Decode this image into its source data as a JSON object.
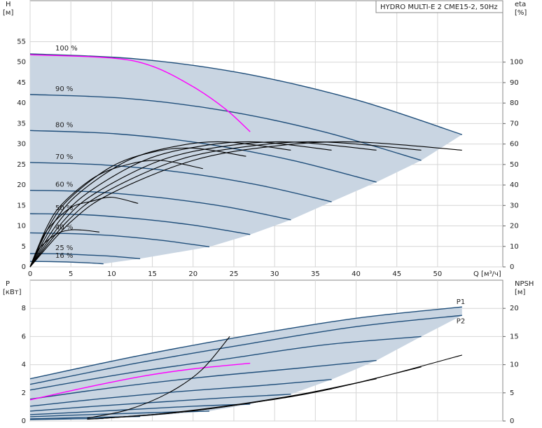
{
  "chart_data": [
    {
      "type": "line",
      "title": "HYDRO MULTI-E 2 CME15-2, 50Hz",
      "ylabel": "H",
      "yunit": "[м]",
      "y2label": "eta",
      "y2unit": "[%]",
      "xlabel": "Q [м³/ч]",
      "xlim": [
        0,
        58
      ],
      "xticks": [
        0,
        5,
        10,
        15,
        20,
        25,
        30,
        35,
        40,
        45,
        50
      ],
      "ylim": [
        0,
        65
      ],
      "yticks": [
        0,
        5,
        10,
        15,
        20,
        25,
        30,
        35,
        40,
        45,
        50,
        55
      ],
      "y2lim": [
        0,
        130
      ],
      "y2ticks": [
        0,
        10,
        20,
        30,
        40,
        50,
        60,
        70,
        80,
        90,
        100
      ],
      "grid": true,
      "area_color": "#c9d5e2",
      "series": [
        {
          "name": "100 %",
          "label_at": "start",
          "color": "#1f4e7a",
          "x": [
            0,
            13,
            26,
            40,
            53
          ],
          "values": [
            52,
            50.8,
            47.3,
            40.8,
            32.3
          ]
        },
        {
          "name": "90 %",
          "label_at": "start",
          "color": "#1f4e7a",
          "x": [
            0,
            12,
            24,
            36,
            48
          ],
          "values": [
            42.1,
            41.1,
            38.1,
            33.0,
            26.0
          ]
        },
        {
          "name": "80 %",
          "label_at": "start",
          "color": "#1f4e7a",
          "x": [
            0,
            10.5,
            21,
            32,
            42.5
          ],
          "values": [
            33.3,
            32.5,
            30.2,
            26.1,
            20.7
          ]
        },
        {
          "name": "70 %",
          "label_at": "start",
          "color": "#1f4e7a",
          "x": [
            0,
            9,
            18.5,
            28,
            37
          ],
          "values": [
            25.5,
            24.9,
            23.1,
            20.0,
            15.9
          ]
        },
        {
          "name": "60 %",
          "label_at": "start",
          "color": "#1f4e7a",
          "x": [
            0,
            8,
            16,
            24,
            32
          ],
          "values": [
            18.7,
            18.3,
            16.9,
            14.7,
            11.5
          ]
        },
        {
          "name": "50 %",
          "label_at": "start",
          "color": "#1f4e7a",
          "x": [
            0,
            7,
            13.5,
            20,
            27
          ],
          "values": [
            13,
            12.7,
            11.7,
            10.2,
            7.9
          ]
        },
        {
          "name": "40 %",
          "label_at": "start",
          "color": "#1f4e7a",
          "x": [
            0,
            5.5,
            11,
            16.5,
            22
          ],
          "values": [
            8.3,
            8.1,
            7.5,
            6.4,
            4.9
          ]
        },
        {
          "name": "25 %",
          "label_at": "start",
          "color": "#1f4e7a",
          "x": [
            0,
            3.5,
            7,
            10,
            13.5
          ],
          "values": [
            3.25,
            3.2,
            2.9,
            2.6,
            2.0
          ]
        },
        {
          "name": "16 %",
          "label_at": "start",
          "color": "#1f4e7a",
          "x": [
            0,
            2.5,
            4.5,
            7,
            9
          ],
          "values": [
            1.33,
            1.3,
            1.2,
            1.0,
            0.76
          ]
        },
        {
          "color": "#ff00ff",
          "x": [
            0,
            10,
            15,
            20,
            24,
            27
          ],
          "values": [
            51.8,
            51,
            49,
            44,
            38.5,
            33
          ]
        },
        {
          "color": "#000000",
          "axis": "y2",
          "x": [
            0,
            5,
            10,
            20,
            30,
            40,
            53
          ],
          "values": [
            0,
            22,
            36,
            52,
            59,
            61,
            57
          ]
        },
        {
          "color": "#000000",
          "axis": "y2",
          "x": [
            0,
            4.5,
            9,
            18,
            27,
            36,
            48
          ],
          "values": [
            0,
            22,
            36,
            52,
            59,
            61,
            57
          ]
        },
        {
          "color": "#000000",
          "axis": "y2",
          "x": [
            0,
            4,
            8,
            16,
            24,
            32,
            42.5
          ],
          "values": [
            0,
            22,
            36,
            52,
            59,
            61,
            57
          ]
        },
        {
          "color": "#000000",
          "axis": "y2",
          "x": [
            0,
            3.5,
            7,
            14,
            21,
            28,
            37
          ],
          "values": [
            0,
            22,
            36,
            52,
            59,
            61,
            57
          ]
        },
        {
          "color": "#000000",
          "axis": "y2",
          "x": [
            0,
            3,
            6,
            12,
            18,
            24,
            32
          ],
          "values": [
            0,
            22,
            36,
            52,
            59,
            61,
            57
          ]
        },
        {
          "color": "#000000",
          "axis": "y2",
          "x": [
            0,
            2.5,
            5,
            10,
            15,
            20,
            26.5
          ],
          "values": [
            0,
            21,
            34,
            49,
            56,
            58,
            54
          ]
        },
        {
          "color": "#000000",
          "axis": "y2",
          "x": [
            0,
            2,
            4,
            8,
            12,
            16,
            21.2
          ],
          "values": [
            0,
            19,
            31,
            44,
            50,
            52,
            48
          ]
        },
        {
          "color": "#000000",
          "axis": "y2",
          "x": [
            0,
            1.25,
            2.5,
            5,
            7.5,
            10,
            13.25
          ],
          "values": [
            0,
            12,
            20,
            29,
            32,
            34,
            31
          ]
        },
        {
          "color": "#000000",
          "axis": "y2",
          "x": [
            0,
            0.8,
            1.6,
            3.2,
            4.8,
            6.4,
            8.5
          ],
          "values": [
            0,
            7,
            11,
            16,
            18,
            18,
            17
          ]
        }
      ]
    },
    {
      "type": "line",
      "ylabel": "P",
      "yunit": "[кВт]",
      "y2label": "NPSH",
      "y2unit": "[м]",
      "xlim": [
        0,
        58
      ],
      "ylim": [
        0,
        10
      ],
      "yticks": [
        0,
        2,
        4,
        6,
        8
      ],
      "y2lim": [
        0,
        25
      ],
      "y2ticks": [
        0,
        5,
        10,
        15,
        20
      ],
      "grid": true,
      "area_color": "#c9d5e2",
      "series": [
        {
          "name": "P1",
          "label_at": "end-above",
          "color": "#1f4e7a",
          "x": [
            0,
            13,
            26,
            40,
            53
          ],
          "values": [
            3.0,
            4.6,
            6.0,
            7.3,
            8.1
          ]
        },
        {
          "name": "P2",
          "label_at": "end-below",
          "color": "#1f4e7a",
          "x": [
            0,
            13,
            26,
            40,
            53
          ],
          "values": [
            2.6,
            4.1,
            5.4,
            6.7,
            7.5
          ]
        },
        {
          "color": "#1f4e7a",
          "x": [
            0,
            12,
            24,
            36,
            48
          ],
          "values": [
            2.2,
            3.4,
            4.4,
            5.4,
            6.0
          ]
        },
        {
          "color": "#1f4e7a",
          "x": [
            0,
            10.5,
            21,
            32,
            42.5
          ],
          "values": [
            1.55,
            2.4,
            3.1,
            3.7,
            4.3
          ]
        },
        {
          "color": "#1f4e7a",
          "x": [
            0,
            9,
            18.5,
            28,
            37
          ],
          "values": [
            1.05,
            1.6,
            2.1,
            2.5,
            2.95
          ]
        },
        {
          "color": "#1f4e7a",
          "x": [
            0,
            8,
            16,
            24,
            32
          ],
          "values": [
            0.7,
            1.05,
            1.35,
            1.65,
            1.9
          ]
        },
        {
          "color": "#1f4e7a",
          "x": [
            0,
            7,
            13.5,
            20,
            27
          ],
          "values": [
            0.45,
            0.65,
            0.85,
            1.05,
            1.2
          ]
        },
        {
          "color": "#1f4e7a",
          "x": [
            0,
            5.5,
            11,
            16.5,
            22
          ],
          "values": [
            0.3,
            0.42,
            0.52,
            0.62,
            0.7
          ]
        },
        {
          "color": "#1f4e7a",
          "x": [
            0,
            3.5,
            7,
            10,
            13.5
          ],
          "values": [
            0.15,
            0.2,
            0.25,
            0.28,
            0.32
          ]
        },
        {
          "color": "#1f4e7a",
          "x": [
            0,
            2.5,
            4.5,
            7,
            9
          ],
          "values": [
            0.1,
            0.12,
            0.14,
            0.16,
            0.18
          ]
        },
        {
          "color": "#ff00ff",
          "x": [
            0,
            7,
            14,
            20,
            27
          ],
          "values": [
            1.5,
            2.4,
            3.2,
            3.7,
            4.1
          ]
        },
        {
          "color": "#000000",
          "axis": "y2",
          "x": [
            10,
            20,
            30,
            40,
            53
          ],
          "values": [
            0.6,
            1.8,
            3.9,
            6.7,
            11.7
          ]
        },
        {
          "color": "#000000",
          "axis": "y2",
          "x": [
            9,
            18,
            27,
            36,
            48
          ],
          "values": [
            0.5,
            1.5,
            3.2,
            5.4,
            9.6
          ]
        },
        {
          "color": "#000000",
          "axis": "y2",
          "x": [
            8,
            16,
            24,
            32,
            42.5
          ],
          "values": [
            0.4,
            1.2,
            2.6,
            4.4,
            7.5
          ]
        },
        {
          "color": "#000000",
          "axis": "y2",
          "x": [
            7,
            14,
            21,
            28,
            37
          ],
          "values": [
            0.3,
            1.0,
            2.1,
            3.5,
            5.7
          ]
        },
        {
          "color": "#000000",
          "axis": "y2",
          "x": [
            7,
            12,
            17,
            21,
            24.5
          ],
          "values": [
            0.5,
            2,
            5,
            9,
            15
          ]
        }
      ]
    }
  ]
}
